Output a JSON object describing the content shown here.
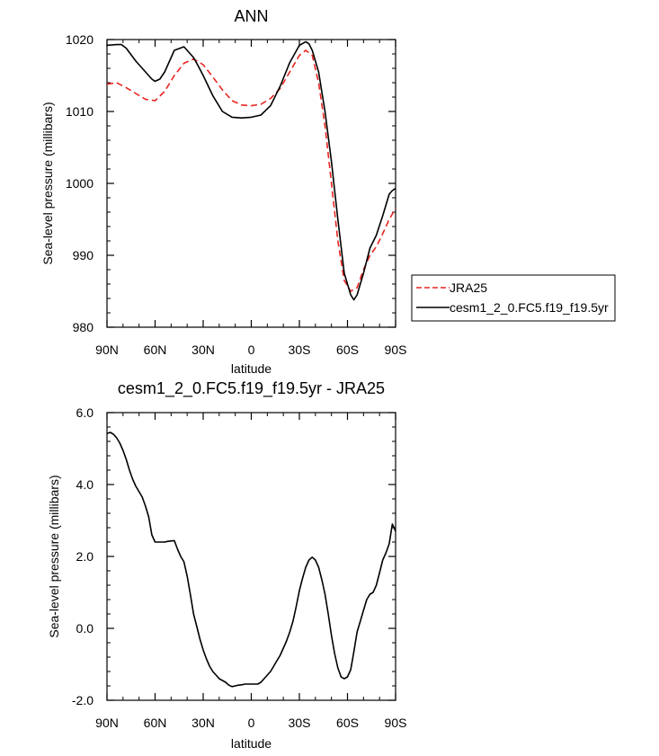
{
  "chart_data": [
    {
      "type": "line",
      "title": "ANN",
      "xlabel": "latitude",
      "ylabel": "Sea-level pressure (millibars)",
      "xlim": [
        90,
        -90
      ],
      "ylim": [
        980,
        1020
      ],
      "x_ticks": [
        90,
        60,
        30,
        0,
        -30,
        -60,
        -90
      ],
      "x_tick_labels": [
        "90N",
        "60N",
        "30N",
        "0",
        "30S",
        "60S",
        "90S"
      ],
      "y_ticks": [
        980,
        990,
        1000,
        1010,
        1020
      ],
      "y_tick_labels": [
        "980",
        "990",
        "1000",
        "1010",
        "1020"
      ],
      "legend_position": "right",
      "series": [
        {
          "name": "JRA25",
          "color": "#e8251f",
          "dash": "dashed",
          "x": [
            90,
            84,
            78,
            72,
            66,
            60,
            54,
            48,
            42,
            36,
            30,
            24,
            18,
            12,
            6,
            0,
            -6,
            -12,
            -18,
            -24,
            -30,
            -34,
            -38,
            -42,
            -46,
            -50,
            -54,
            -58,
            -62,
            -66,
            -70,
            -74,
            -78,
            -82,
            -86,
            -90
          ],
          "y": [
            1013.8,
            1014.0,
            1013.3,
            1012.5,
            1011.7,
            1011.5,
            1012.8,
            1015.0,
            1016.7,
            1017.3,
            1016.5,
            1014.8,
            1013.0,
            1011.5,
            1010.9,
            1010.8,
            1011.0,
            1011.8,
            1013.2,
            1015.5,
            1017.8,
            1018.5,
            1017.8,
            1014.0,
            1008.0,
            1000.0,
            992.0,
            986.5,
            985.0,
            985.5,
            988.0,
            990.0,
            991.2,
            993.0,
            995.0,
            996.5
          ]
        },
        {
          "name": "cesm1_2_0.FC5.f19_f19.5yr",
          "color": "#000000",
          "dash": "solid",
          "x": [
            90,
            84,
            81,
            78,
            72,
            66,
            62,
            60,
            57,
            54,
            48,
            42,
            36,
            33,
            30,
            24,
            18,
            12,
            6,
            0,
            -6,
            -12,
            -18,
            -24,
            -30,
            -34,
            -36,
            -38,
            -42,
            -46,
            -50,
            -54,
            -58,
            -62,
            -64,
            -66,
            -70,
            -74,
            -78,
            -82,
            -86,
            -88,
            -90
          ],
          "y": [
            1019.2,
            1019.3,
            1019.3,
            1018.8,
            1017.0,
            1015.5,
            1014.5,
            1014.2,
            1014.5,
            1015.5,
            1018.5,
            1019.0,
            1017.5,
            1016.3,
            1015.0,
            1012.2,
            1010.0,
            1009.2,
            1009.1,
            1009.2,
            1009.5,
            1010.8,
            1013.5,
            1016.8,
            1019.2,
            1019.7,
            1019.4,
            1018.5,
            1015.5,
            1010.0,
            1003.0,
            995.0,
            987.5,
            984.5,
            983.8,
            984.5,
            987.5,
            991.0,
            992.8,
            995.5,
            998.5,
            999.0,
            999.3
          ]
        }
      ]
    },
    {
      "type": "line",
      "title": "cesm1_2_0.FC5.f19_f19.5yr - JRA25",
      "xlabel": "latitude",
      "ylabel": "Sea-level pressure (millibars)",
      "xlim": [
        90,
        -90
      ],
      "ylim": [
        -2,
        6
      ],
      "x_ticks": [
        90,
        60,
        30,
        0,
        -30,
        -60,
        -90
      ],
      "x_tick_labels": [
        "90N",
        "60N",
        "30N",
        "0",
        "30S",
        "60S",
        "90S"
      ],
      "y_ticks": [
        -2,
        0,
        2,
        4,
        6
      ],
      "y_tick_labels": [
        "-2.0",
        "0.0",
        "2.0",
        "4.0",
        "6.0"
      ],
      "series": [
        {
          "color": "#000000",
          "dash": "solid",
          "x": [
            90,
            88,
            86,
            84,
            82,
            80,
            78,
            76,
            74,
            72,
            70,
            68,
            66,
            64,
            62,
            60,
            58,
            56,
            54,
            52,
            50,
            48,
            46,
            44,
            42,
            40,
            38,
            36,
            34,
            32,
            30,
            28,
            26,
            24,
            22,
            20,
            18,
            16,
            14,
            12,
            10,
            8,
            6,
            4,
            2,
            0,
            -2,
            -4,
            -6,
            -8,
            -10,
            -12,
            -14,
            -16,
            -18,
            -20,
            -22,
            -24,
            -26,
            -28,
            -30,
            -32,
            -34,
            -36,
            -38,
            -40,
            -42,
            -44,
            -46,
            -48,
            -50,
            -52,
            -54,
            -56,
            -58,
            -60,
            -62,
            -64,
            -66,
            -68,
            -70,
            -72,
            -74,
            -76,
            -78,
            -80,
            -82,
            -84,
            -86,
            -88,
            -90
          ],
          "y": [
            5.42,
            5.45,
            5.4,
            5.3,
            5.15,
            4.95,
            4.7,
            4.4,
            4.15,
            3.95,
            3.8,
            3.65,
            3.4,
            3.1,
            2.6,
            2.4,
            2.4,
            2.4,
            2.4,
            2.42,
            2.43,
            2.44,
            2.2,
            2.0,
            1.85,
            1.45,
            0.95,
            0.4,
            0.05,
            -0.3,
            -0.6,
            -0.85,
            -1.05,
            -1.2,
            -1.3,
            -1.4,
            -1.45,
            -1.5,
            -1.58,
            -1.62,
            -1.6,
            -1.58,
            -1.57,
            -1.55,
            -1.55,
            -1.55,
            -1.55,
            -1.55,
            -1.5,
            -1.4,
            -1.3,
            -1.2,
            -1.05,
            -0.9,
            -0.75,
            -0.55,
            -0.35,
            -0.1,
            0.2,
            0.6,
            1.05,
            1.4,
            1.7,
            1.9,
            1.98,
            1.9,
            1.7,
            1.35,
            0.95,
            0.4,
            -0.2,
            -0.7,
            -1.1,
            -1.35,
            -1.4,
            -1.35,
            -1.15,
            -0.65,
            -0.1,
            0.2,
            0.5,
            0.8,
            0.95,
            1.0,
            1.2,
            1.55,
            1.9,
            2.1,
            2.35,
            2.9,
            2.7
          ]
        }
      ]
    }
  ]
}
